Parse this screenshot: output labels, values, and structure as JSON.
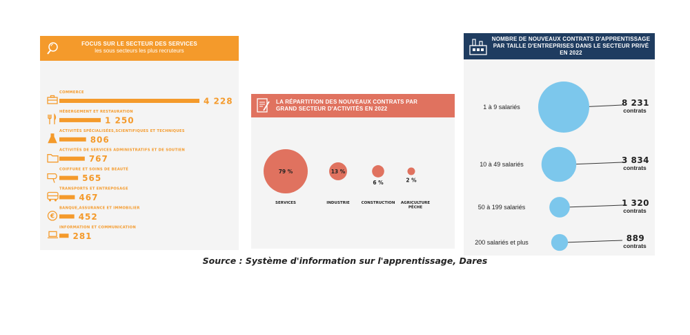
{
  "colors": {
    "orange": "#f49a2b",
    "coral": "#e0725f",
    "navy": "#1f3c60",
    "sky": "#7cc7ec",
    "panel": "#f4f4f4"
  },
  "panel_services": {
    "title": "FOCUS SUR LE SECTEUR DES SERVICES",
    "subtitle": "les sous secteurs les plus recruteurs",
    "icon": "magnifier-icon"
  },
  "panel_sectors": {
    "title": "LA RÉPARTITION DES NOUVEAUX CONTRATS PAR GRAND SECTEUR D'ACTIVITÉS EN 2022",
    "icon": "document-pen-icon"
  },
  "panel_sizes": {
    "title": "NOMBRE DE NOUVEAUX CONTRATS D'APPRENTISSAGE PAR TAILLE D'ENTREPRISES DANS LE SECTEUR PRIVÉ EN 2022",
    "icon": "factory-icon"
  },
  "chart_data": [
    {
      "type": "bar",
      "orientation": "horizontal",
      "title": "FOCUS SUR LE SECTEUR DES SERVICES",
      "subtitle": "les sous secteurs les plus recruteurs",
      "categories": [
        "COMMERCE",
        "HÉBERGEMENT ET RESTAURATION",
        "ACTIVITÉS SPÉCIALISÉES,SCIENTIFIQUES ET TECHNIQUES",
        "ACTIVITÉS DE SERVICES ADMINISTRATIFS ET DE SOUTIEN",
        "COIFFURE ET SOINS DE BEAUTÉ",
        "TRANSPORTS ET ENTREPOSAGE",
        "BANQUE,ASSURANCE ET IMMOBILIER",
        "INFORMATION ET COMMUNICATION"
      ],
      "values": [
        4228,
        1250,
        806,
        767,
        565,
        467,
        452,
        281
      ],
      "value_labels": [
        "4 228",
        "1 250",
        "806",
        "767",
        "565",
        "467",
        "452",
        "281"
      ],
      "icons": [
        "briefcase-icon",
        "fork-knife-icon",
        "flask-icon",
        "folder-icon",
        "hairdryer-icon",
        "bus-icon",
        "euro-icon",
        "laptop-icon"
      ],
      "color": "#f49a2b"
    },
    {
      "type": "bubble",
      "title": "LA RÉPARTITION DES NOUVEAUX CONTRATS PAR GRAND SECTEUR D'ACTIVITÉS EN 2022",
      "categories": [
        "SERVICES",
        "INDUSTRIE",
        "CONSTRUCTION",
        "AGRICULTURE PÊCHE"
      ],
      "values": [
        79,
        13,
        6,
        2
      ],
      "value_labels": [
        "79 %",
        "13 %",
        "6 %",
        "2 %"
      ],
      "color": "#e0725f"
    },
    {
      "type": "bubble",
      "title": "NOMBRE DE NOUVEAUX CONTRATS D'APPRENTISSAGE PAR TAILLE D'ENTREPRISES DANS LE SECTEUR PRIVÉ EN 2022",
      "categories": [
        "1 à 9 salariés",
        "10 à 49 salariés",
        "50 à 199 salariés",
        "200 salariés et plus"
      ],
      "values": [
        8231,
        3834,
        1320,
        889
      ],
      "value_labels": [
        "8 231",
        "3 834",
        "1 320",
        "889"
      ],
      "unit": "contrats",
      "color": "#7cc7ec"
    }
  ],
  "source": "Source  : Système d'information sur l'apprentissage, Dares"
}
